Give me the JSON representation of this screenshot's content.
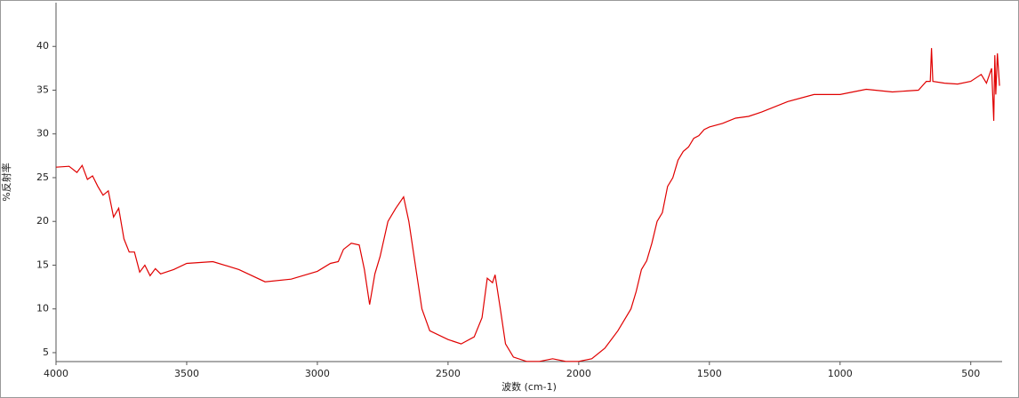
{
  "chart_data": {
    "type": "line",
    "x_label": "波数 (cm-1)",
    "y_label": "%反射率",
    "xlim": [
      4000,
      380
    ],
    "ylim": [
      3.98,
      45
    ],
    "xticks": [
      4000,
      3500,
      3000,
      2500,
      2000,
      1500,
      1000,
      500
    ],
    "yticks": [
      5,
      10,
      15,
      20,
      25,
      30,
      35,
      40
    ],
    "grid": false,
    "x": [
      4000,
      3950,
      3920,
      3900,
      3880,
      3860,
      3840,
      3820,
      3800,
      3780,
      3760,
      3740,
      3720,
      3700,
      3680,
      3660,
      3640,
      3620,
      3600,
      3550,
      3500,
      3400,
      3300,
      3200,
      3100,
      3000,
      2950,
      2920,
      2900,
      2870,
      2840,
      2820,
      2800,
      2780,
      2760,
      2730,
      2700,
      2670,
      2650,
      2620,
      2600,
      2570,
      2500,
      2450,
      2400,
      2370,
      2350,
      2330,
      2320,
      2300,
      2280,
      2250,
      2200,
      2150,
      2100,
      2050,
      2000,
      1950,
      1900,
      1850,
      1800,
      1780,
      1760,
      1740,
      1720,
      1700,
      1680,
      1660,
      1640,
      1620,
      1600,
      1580,
      1560,
      1540,
      1520,
      1500,
      1450,
      1400,
      1350,
      1300,
      1200,
      1100,
      1000,
      900,
      800,
      700,
      670,
      655,
      650,
      645,
      600,
      550,
      500,
      460,
      440,
      420,
      412,
      408,
      404,
      398,
      390
    ],
    "series": [
      {
        "name": "%反射率",
        "color": "#e00000",
        "values": [
          26.2,
          26.3,
          25.6,
          26.4,
          24.8,
          25.2,
          24.0,
          23.0,
          23.5,
          20.5,
          21.5,
          18.0,
          16.5,
          16.5,
          14.2,
          15.0,
          13.8,
          14.6,
          14.0,
          14.5,
          15.2,
          15.4,
          14.5,
          13.1,
          13.4,
          14.3,
          15.2,
          15.4,
          16.8,
          17.5,
          17.3,
          14.5,
          10.5,
          14.0,
          16.0,
          20.0,
          21.5,
          22.8,
          20.0,
          14.0,
          10.0,
          7.5,
          6.5,
          6.0,
          6.8,
          9.0,
          13.5,
          13.0,
          13.9,
          10.0,
          6.0,
          4.5,
          4.0,
          4.0,
          4.3,
          4.0,
          4.0,
          4.3,
          5.5,
          7.5,
          10.0,
          12.0,
          14.5,
          15.5,
          17.5,
          20.0,
          21.0,
          24.0,
          25.0,
          27.0,
          28.0,
          28.5,
          29.5,
          29.8,
          30.5,
          30.8,
          31.2,
          31.8,
          32.0,
          32.5,
          33.7,
          34.5,
          34.5,
          35.1,
          34.8,
          35.0,
          36.0,
          36.0,
          39.8,
          36.0,
          35.8,
          35.7,
          36.0,
          36.8,
          35.8,
          37.5,
          31.5,
          39.0,
          34.5,
          39.2,
          35.5
        ]
      }
    ]
  }
}
